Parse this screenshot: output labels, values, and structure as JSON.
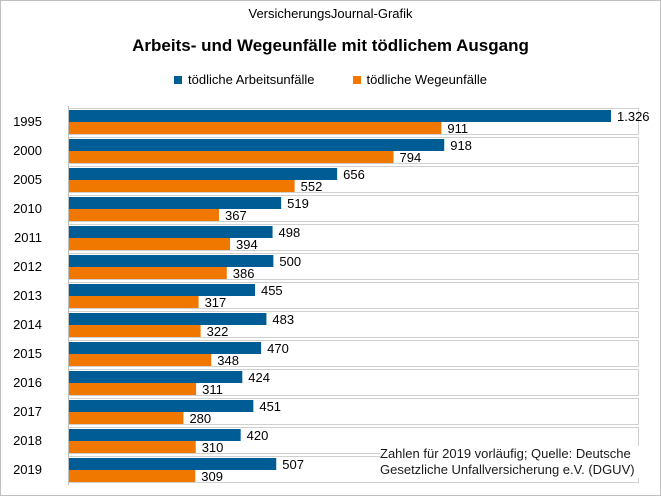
{
  "supertitle": "VersicherungsJournal-Grafik",
  "chart_data": {
    "type": "bar",
    "orientation": "horizontal",
    "title": "Arbeits- und Wegeunfälle  mit tödlichem Ausgang",
    "categories": [
      "1995",
      "2000",
      "2005",
      "2010",
      "2011",
      "2012",
      "2013",
      "2014",
      "2015",
      "2016",
      "2017",
      "2018",
      "2019"
    ],
    "series": [
      {
        "name": "tödliche Arbeitsunfälle",
        "color": "#005c94",
        "values": [
          1326,
          918,
          656,
          519,
          498,
          500,
          455,
          483,
          470,
          424,
          451,
          420,
          507
        ],
        "labels": [
          "1.326",
          "918",
          "656",
          "519",
          "498",
          "500",
          "455",
          "483",
          "470",
          "424",
          "451",
          "420",
          "507"
        ]
      },
      {
        "name": "tödliche Wegeunfälle",
        "color": "#f07800",
        "values": [
          911,
          794,
          552,
          367,
          394,
          386,
          317,
          322,
          348,
          311,
          280,
          310,
          309
        ],
        "labels": [
          "911",
          "794",
          "552",
          "367",
          "394",
          "386",
          "317",
          "322",
          "348",
          "311",
          "280",
          "310",
          "309"
        ]
      }
    ],
    "xlim": [
      0,
      1326
    ],
    "xlabel": "",
    "ylabel": "",
    "grid": false,
    "legend_position": "top"
  },
  "source_note": {
    "line1": "Zahlen  für  2019  vorläufig;  Quelle:  Deutsche",
    "line2": "Gesetzliche  Unfallversicherung  e.V.  (DGUV)"
  }
}
